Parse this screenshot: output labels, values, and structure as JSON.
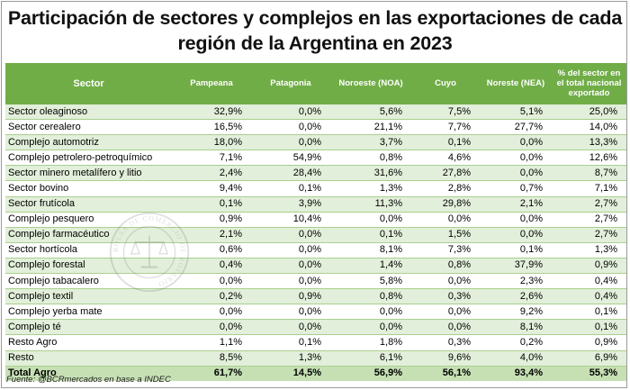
{
  "title": "Participación de sectores y complejos en las exportaciones de cada región de la Argentina en 2023",
  "headers": {
    "sector": "Sector",
    "pampeana": "Pampeana",
    "patagonia": "Patagonia",
    "noa": "Noroeste (NOA)",
    "cuyo": "Cuyo",
    "nea": "Noreste (NEA)",
    "total": "% del sector en el total nacional exportado"
  },
  "rows": [
    {
      "sector": "Sector oleaginoso",
      "pampeana": "32,9%",
      "patagonia": "0,0%",
      "noa": "5,6%",
      "cuyo": "7,5%",
      "nea": "5,1%",
      "total": "25,0%"
    },
    {
      "sector": "Sector cerealero",
      "pampeana": "16,5%",
      "patagonia": "0,0%",
      "noa": "21,1%",
      "cuyo": "7,7%",
      "nea": "27,7%",
      "total": "14,0%"
    },
    {
      "sector": "Complejo automotriz",
      "pampeana": "18,0%",
      "patagonia": "0,0%",
      "noa": "3,7%",
      "cuyo": "0,1%",
      "nea": "0,0%",
      "total": "13,3%"
    },
    {
      "sector": "Complejo petrolero-petroquímico",
      "pampeana": "7,1%",
      "patagonia": "54,9%",
      "noa": "0,8%",
      "cuyo": "4,6%",
      "nea": "0,0%",
      "total": "12,6%"
    },
    {
      "sector": "Sector minero metalífero y litio",
      "pampeana": "2,4%",
      "patagonia": "28,4%",
      "noa": "31,6%",
      "cuyo": "27,8%",
      "nea": "0,0%",
      "total": "8,7%"
    },
    {
      "sector": "Sector bovino",
      "pampeana": "9,4%",
      "patagonia": "0,1%",
      "noa": "1,3%",
      "cuyo": "2,8%",
      "nea": "0,7%",
      "total": "7,1%"
    },
    {
      "sector": "Sector frutícola",
      "pampeana": "0,1%",
      "patagonia": "3,9%",
      "noa": "11,3%",
      "cuyo": "29,8%",
      "nea": "2,1%",
      "total": "2,7%"
    },
    {
      "sector": "Complejo pesquero",
      "pampeana": "0,9%",
      "patagonia": "10,4%",
      "noa": "0,0%",
      "cuyo": "0,0%",
      "nea": "0,0%",
      "total": "2,7%"
    },
    {
      "sector": "Complejo farmacéutico",
      "pampeana": "2,1%",
      "patagonia": "0,0%",
      "noa": "0,1%",
      "cuyo": "1,5%",
      "nea": "0,0%",
      "total": "2,7%"
    },
    {
      "sector": "Sector hortícola",
      "pampeana": "0,6%",
      "patagonia": "0,0%",
      "noa": "8,1%",
      "cuyo": "7,3%",
      "nea": "0,1%",
      "total": "1,3%"
    },
    {
      "sector": "Complejo forestal",
      "pampeana": "0,4%",
      "patagonia": "0,0%",
      "noa": "1,4%",
      "cuyo": "0,8%",
      "nea": "37,9%",
      "total": "0,9%"
    },
    {
      "sector": "Complejo tabacalero",
      "pampeana": "0,0%",
      "patagonia": "0,0%",
      "noa": "5,8%",
      "cuyo": "0,0%",
      "nea": "2,3%",
      "total": "0,4%"
    },
    {
      "sector": "Complejo textil",
      "pampeana": "0,2%",
      "patagonia": "0,9%",
      "noa": "0,8%",
      "cuyo": "0,3%",
      "nea": "2,6%",
      "total": "0,4%"
    },
    {
      "sector": "Complejo yerba mate",
      "pampeana": "0,0%",
      "patagonia": "0,0%",
      "noa": "0,0%",
      "cuyo": "0,0%",
      "nea": "9,2%",
      "total": "0,1%"
    },
    {
      "sector": "Complejo té",
      "pampeana": "0,0%",
      "patagonia": "0,0%",
      "noa": "0,0%",
      "cuyo": "0,0%",
      "nea": "8,1%",
      "total": "0,1%"
    },
    {
      "sector": "Resto Agro",
      "pampeana": "1,1%",
      "patagonia": "0,1%",
      "noa": "1,8%",
      "cuyo": "0,3%",
      "nea": "0,2%",
      "total": "0,9%"
    },
    {
      "sector": "Resto",
      "pampeana": "8,5%",
      "patagonia": "1,3%",
      "noa": "6,1%",
      "cuyo": "9,6%",
      "nea": "4,0%",
      "total": "6,9%"
    }
  ],
  "total_row": {
    "sector": "Total Agro",
    "pampeana": "61,7%",
    "patagonia": "14,5%",
    "noa": "56,9%",
    "cuyo": "56,1%",
    "nea": "93,4%",
    "total": "55,3%"
  },
  "source": "Fuente: @BCRmercados en base a INDEC",
  "seal_text": "BOLSA DE COMERCIO DE ROSARIO",
  "colors": {
    "header": "#70ad47",
    "band": "#e2efda",
    "total": "#c6e0b4"
  }
}
